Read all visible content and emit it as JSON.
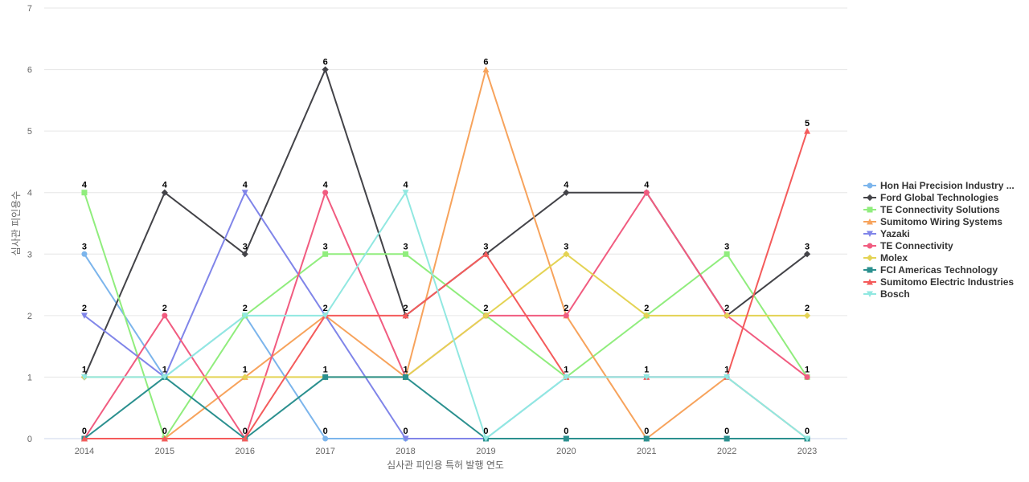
{
  "chart_data": {
    "type": "line",
    "title": "",
    "xlabel": "심사관 피인용 특허 발행 연도",
    "ylabel": "심사관 피인용수",
    "ylim": [
      0,
      7
    ],
    "yticks": [
      0,
      1,
      2,
      3,
      4,
      5,
      6,
      7
    ],
    "grid": true,
    "legend_position": "right",
    "categories": [
      "2014",
      "2015",
      "2016",
      "2017",
      "2018",
      "2019",
      "2020",
      "2021",
      "2022",
      "2023"
    ],
    "series": [
      {
        "name": "Hon Hai Precision Industry ...",
        "color": "#7cb5ec",
        "marker": "circle",
        "values": [
          3,
          1,
          2,
          0,
          0,
          0,
          1,
          1,
          1,
          0
        ]
      },
      {
        "name": "Ford Global Technologies",
        "color": "#434348",
        "marker": "diamond",
        "values": [
          1,
          4,
          3,
          6,
          2,
          3,
          4,
          4,
          2,
          3
        ]
      },
      {
        "name": "TE Connectivity Solutions",
        "color": "#90ed7d",
        "marker": "square",
        "values": [
          4,
          0,
          2,
          3,
          3,
          2,
          1,
          2,
          3,
          1
        ]
      },
      {
        "name": "Sumitomo Wiring Systems",
        "color": "#f7a35c",
        "marker": "triangle",
        "values": [
          0,
          0,
          1,
          2,
          1,
          6,
          2,
          0,
          1,
          0
        ]
      },
      {
        "name": "Yazaki",
        "color": "#8085e9",
        "marker": "triangle-down",
        "values": [
          2,
          1,
          4,
          2,
          0,
          0,
          0,
          0,
          0,
          0
        ]
      },
      {
        "name": "TE Connectivity",
        "color": "#f15c80",
        "marker": "circle",
        "values": [
          0,
          2,
          0,
          4,
          1,
          2,
          2,
          4,
          2,
          1
        ]
      },
      {
        "name": "Molex",
        "color": "#e4d354",
        "marker": "diamond",
        "values": [
          1,
          1,
          1,
          1,
          1,
          2,
          3,
          2,
          2,
          2
        ]
      },
      {
        "name": "FCI Americas Technology",
        "color": "#2b908f",
        "marker": "square",
        "values": [
          0,
          1,
          0,
          1,
          1,
          0,
          0,
          0,
          0,
          0
        ]
      },
      {
        "name": "Sumitomo Electric Industries",
        "color": "#f45b5b",
        "marker": "triangle",
        "values": [
          0,
          0,
          0,
          2,
          2,
          3,
          1,
          1,
          1,
          5
        ]
      },
      {
        "name": "Bosch",
        "color": "#91e8e1",
        "marker": "triangle-down",
        "values": [
          1,
          1,
          2,
          2,
          4,
          0,
          1,
          1,
          1,
          0
        ]
      }
    ],
    "point_labels": [
      {
        "x": "2014",
        "y": 4
      },
      {
        "x": "2014",
        "y": 3
      },
      {
        "x": "2014",
        "y": 2
      },
      {
        "x": "2014",
        "y": 1
      },
      {
        "x": "2014",
        "y": 0
      },
      {
        "x": "2015",
        "y": 4
      },
      {
        "x": "2015",
        "y": 2
      },
      {
        "x": "2015",
        "y": 1
      },
      {
        "x": "2015",
        "y": 0
      },
      {
        "x": "2016",
        "y": 4
      },
      {
        "x": "2016",
        "y": 3
      },
      {
        "x": "2016",
        "y": 2
      },
      {
        "x": "2016",
        "y": 1
      },
      {
        "x": "2016",
        "y": 0
      },
      {
        "x": "2017",
        "y": 6
      },
      {
        "x": "2017",
        "y": 4
      },
      {
        "x": "2017",
        "y": 3
      },
      {
        "x": "2017",
        "y": 2
      },
      {
        "x": "2017",
        "y": 1
      },
      {
        "x": "2017",
        "y": 0
      },
      {
        "x": "2018",
        "y": 4
      },
      {
        "x": "2018",
        "y": 3
      },
      {
        "x": "2018",
        "y": 2
      },
      {
        "x": "2018",
        "y": 1
      },
      {
        "x": "2018",
        "y": 0
      },
      {
        "x": "2019",
        "y": 6
      },
      {
        "x": "2019",
        "y": 3
      },
      {
        "x": "2019",
        "y": 2
      },
      {
        "x": "2019",
        "y": 0
      },
      {
        "x": "2020",
        "y": 4
      },
      {
        "x": "2020",
        "y": 3
      },
      {
        "x": "2020",
        "y": 2
      },
      {
        "x": "2020",
        "y": 1
      },
      {
        "x": "2020",
        "y": 0
      },
      {
        "x": "2021",
        "y": 4
      },
      {
        "x": "2021",
        "y": 2
      },
      {
        "x": "2021",
        "y": 1
      },
      {
        "x": "2021",
        "y": 0
      },
      {
        "x": "2022",
        "y": 3
      },
      {
        "x": "2022",
        "y": 2
      },
      {
        "x": "2022",
        "y": 1
      },
      {
        "x": "2022",
        "y": 0
      },
      {
        "x": "2023",
        "y": 5
      },
      {
        "x": "2023",
        "y": 3
      },
      {
        "x": "2023",
        "y": 2
      },
      {
        "x": "2023",
        "y": 1
      },
      {
        "x": "2023",
        "y": 0
      }
    ]
  }
}
